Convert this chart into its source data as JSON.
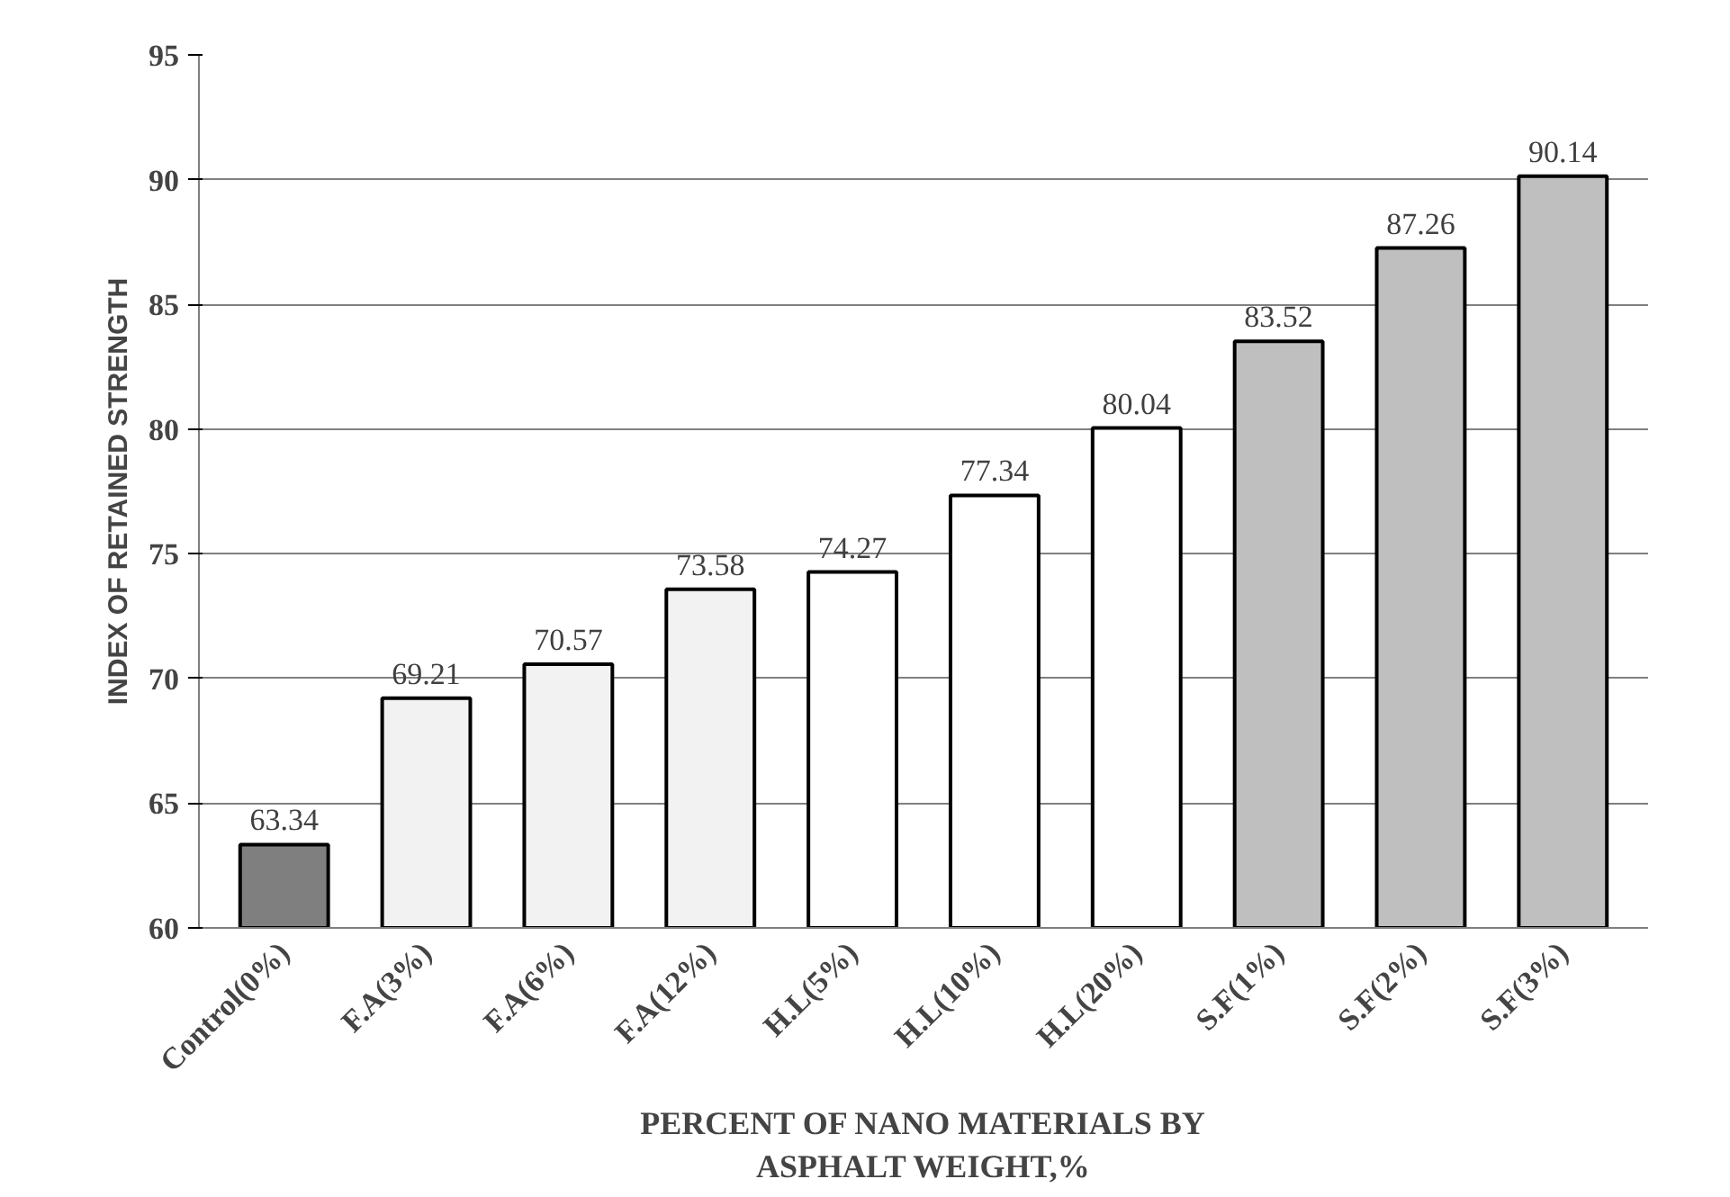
{
  "chart_data": {
    "type": "bar",
    "xlabel": "PERCENT OF NANO MATERIALS BY\nASPHALT WEIGHT,%",
    "ylabel": "INDEX OF RETAINED STRENGTH",
    "categories": [
      "Control(0%)",
      "F.A(3%)",
      "F.A(6%)",
      "F.A(12%)",
      "H.L(5%)",
      "H.L(10%)",
      "H.L(20%)",
      "S.F(1%)",
      "S.F(2%)",
      "S.F(3%)"
    ],
    "values": [
      63.34,
      69.21,
      70.57,
      73.58,
      74.27,
      77.34,
      80.04,
      83.52,
      87.26,
      90.14
    ],
    "colors": [
      "#7f7f7f",
      "#f2f2f2",
      "#f2f2f2",
      "#f2f2f2",
      "#ffffff",
      "#ffffff",
      "#ffffff",
      "#bfbfbf",
      "#bfbfbf",
      "#bfbfbf"
    ],
    "ylim": [
      60,
      95
    ],
    "yticks": [
      60,
      65,
      70,
      75,
      80,
      85,
      90,
      95
    ],
    "grid": "y",
    "data_labels": true
  }
}
